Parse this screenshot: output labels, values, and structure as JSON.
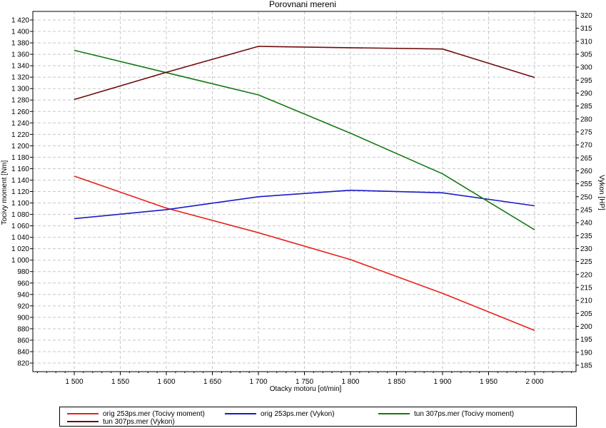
{
  "chart_data": {
    "type": "line",
    "title": "Porovnani mereni",
    "xlabel": "Otacky motoru [ot/min]",
    "ylabel_left": "Tocivy moment [Nm]",
    "ylabel_right": "Vykon [HP]",
    "x": [
      1500,
      1600,
      1700,
      1800,
      1900,
      2000
    ],
    "xlim": [
      1455,
      2045
    ],
    "ylim_left": [
      805,
      1435
    ],
    "ylim_right": [
      182.5,
      321.5
    ],
    "x_ticks": [
      1500,
      1550,
      1600,
      1650,
      1700,
      1750,
      1800,
      1850,
      1900,
      1950,
      2000
    ],
    "x_tick_labels": [
      "1 500",
      "1 550",
      "1 600",
      "1 650",
      "1 700",
      "1 750",
      "1 800",
      "1 850",
      "1 900",
      "1 950",
      "2 000"
    ],
    "y_left_ticks": [
      820,
      840,
      860,
      880,
      900,
      920,
      940,
      960,
      980,
      1000,
      1020,
      1040,
      1060,
      1080,
      1100,
      1120,
      1140,
      1160,
      1180,
      1200,
      1220,
      1240,
      1260,
      1280,
      1300,
      1320,
      1340,
      1360,
      1380,
      1400,
      1420
    ],
    "y_left_tick_labels": [
      "820",
      "840",
      "860",
      "880",
      "900",
      "920",
      "940",
      "960",
      "980",
      "1 000",
      "1 020",
      "1 040",
      "1 060",
      "1 080",
      "1 100",
      "1 120",
      "1 140",
      "1 160",
      "1 180",
      "1 200",
      "1 220",
      "1 240",
      "1 260",
      "1 280",
      "1 300",
      "1 320",
      "1 340",
      "1 360",
      "1 380",
      "1 400",
      "1 420"
    ],
    "y_right_ticks": [
      185,
      190,
      195,
      200,
      205,
      210,
      215,
      220,
      225,
      230,
      235,
      240,
      245,
      250,
      255,
      260,
      265,
      270,
      275,
      280,
      285,
      290,
      295,
      300,
      305,
      310,
      315,
      320
    ],
    "y_right_tick_labels": [
      "185",
      "190",
      "195",
      "200",
      "205",
      "210",
      "215",
      "220",
      "225",
      "230",
      "235",
      "240",
      "245",
      "250",
      "255",
      "260",
      "265",
      "270",
      "275",
      "280",
      "285",
      "290",
      "295",
      "300",
      "305",
      "310",
      "315",
      "320"
    ],
    "grid": true,
    "legend_position": "bottom",
    "series": [
      {
        "name": "orig 253ps.mer  (Tocivy moment)",
        "axis": "left",
        "color": "#e8211b",
        "values": [
          1147,
          1091,
          1048,
          1001,
          942,
          877
        ]
      },
      {
        "name": "orig 253ps.mer  (Vykon)",
        "axis": "right",
        "color": "#1a1ac8",
        "values": [
          241.5,
          245.0,
          250.0,
          252.5,
          251.5,
          246.5
        ]
      },
      {
        "name": "tun 307ps.mer  (Tocivy moment)",
        "axis": "left",
        "color": "#137a13",
        "values": [
          1367,
          1328,
          1289,
          1222,
          1151,
          1053
        ]
      },
      {
        "name": "tun 307ps.mer  (Vykon)",
        "axis": "right",
        "color": "#6e0a0a",
        "values": [
          287.5,
          298.0,
          308.0,
          307.5,
          307.0,
          296.0
        ]
      }
    ]
  }
}
